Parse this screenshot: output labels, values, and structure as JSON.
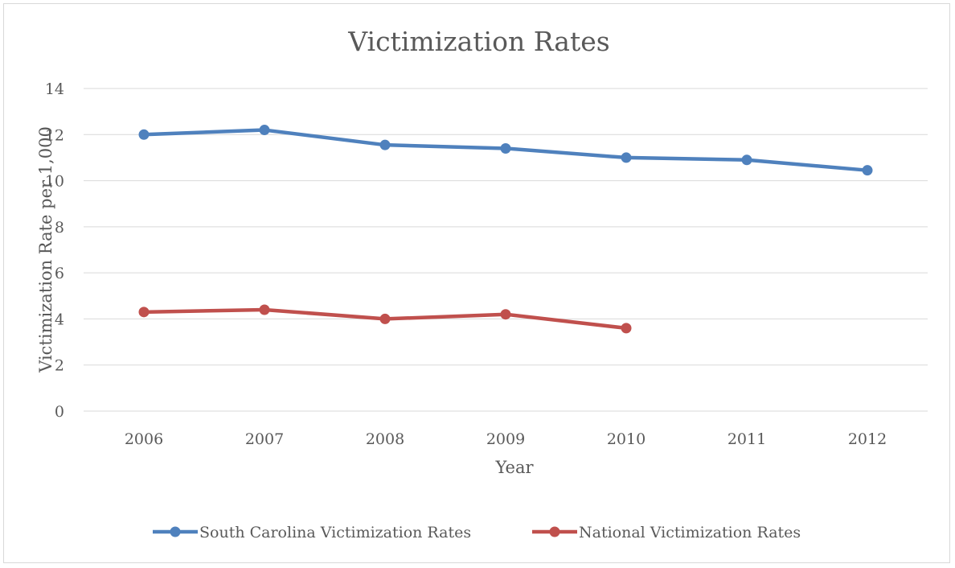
{
  "chart_data": {
    "type": "line",
    "title": "Victimization Rates",
    "xlabel": "Year",
    "ylabel": "Victimization Rate per 1,000",
    "categories": [
      "2006",
      "2007",
      "2008",
      "2009",
      "2010",
      "2011",
      "2012"
    ],
    "ylim": [
      0,
      14
    ],
    "yticks": [
      0,
      2,
      4,
      6,
      8,
      10,
      12,
      14
    ],
    "grid": true,
    "legend_position": "bottom",
    "series": [
      {
        "name": "South Carolina Victimization Rates",
        "color": "#4f81bd",
        "values": [
          12.0,
          12.2,
          11.55,
          11.4,
          11.0,
          10.9,
          10.45
        ]
      },
      {
        "name": "National Victimization Rates",
        "color": "#c0504d",
        "values": [
          4.3,
          4.4,
          4.0,
          4.2,
          3.6,
          null,
          null
        ]
      }
    ]
  }
}
